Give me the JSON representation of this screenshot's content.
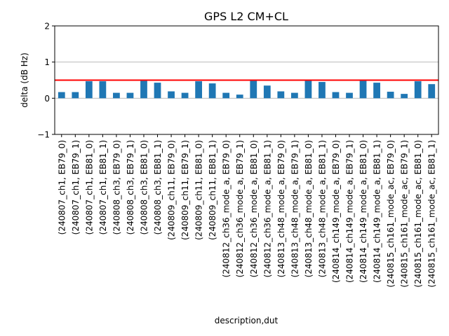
{
  "chart_data": {
    "type": "bar",
    "title": "GPS L2 CM+CL",
    "xlabel": "description,dut",
    "ylabel": "delta (dB Hz)",
    "ylim": [
      -1,
      2
    ],
    "yticks": [
      "−1",
      "0",
      "1",
      "2"
    ],
    "grid": "horizontal",
    "bar_color": "#1f77b4",
    "reference_line": {
      "y": 0.5,
      "color": "#ff0000"
    },
    "categories": [
      "(240807_ch1, EB79_0)",
      "(240807_ch1, EB79_1)",
      "(240807_ch1, EB81_0)",
      "(240807_ch1, EB81_1)",
      "(240808_ch3, EB79_0)",
      "(240808_ch3, EB79_1)",
      "(240808_ch3, EB81_0)",
      "(240808_ch3, EB81_1)",
      "(240809_ch11, EB79_0)",
      "(240809_ch11, EB79_1)",
      "(240809_ch11, EB81_0)",
      "(240809_ch11, EB81_1)",
      "(240812_ch36_mode_a, EB79_0)",
      "(240812_ch36_mode_a, EB79_1)",
      "(240812_ch36_mode_a, EB81_0)",
      "(240812_ch36_mode_a, EB81_1)",
      "(240813_ch48_mode_a, EB79_0)",
      "(240813_ch48_mode_a, EB79_1)",
      "(240813_ch48_mode_a, EB81_0)",
      "(240813_ch48_mode_a, EB81_1)",
      "(240814_ch149_mode_a, EB79_0)",
      "(240814_ch149_mode_a, EB79_1)",
      "(240814_ch149_mode_a, EB81_0)",
      "(240814_ch149_mode_a, EB81_1)",
      "(240815_ch161_mode_ac, EB79_0)",
      "(240815_ch161_mode_ac, EB79_1)",
      "(240815_ch161_mode_ac, EB81_0)",
      "(240815_ch161_mode_ac, EB81_1)"
    ],
    "values": [
      0.17,
      0.17,
      0.47,
      0.47,
      0.15,
      0.15,
      0.48,
      0.43,
      0.19,
      0.15,
      0.47,
      0.41,
      0.15,
      0.1,
      0.48,
      0.35,
      0.19,
      0.15,
      0.48,
      0.45,
      0.17,
      0.15,
      0.48,
      0.43,
      0.18,
      0.12,
      0.47,
      0.39
    ]
  }
}
